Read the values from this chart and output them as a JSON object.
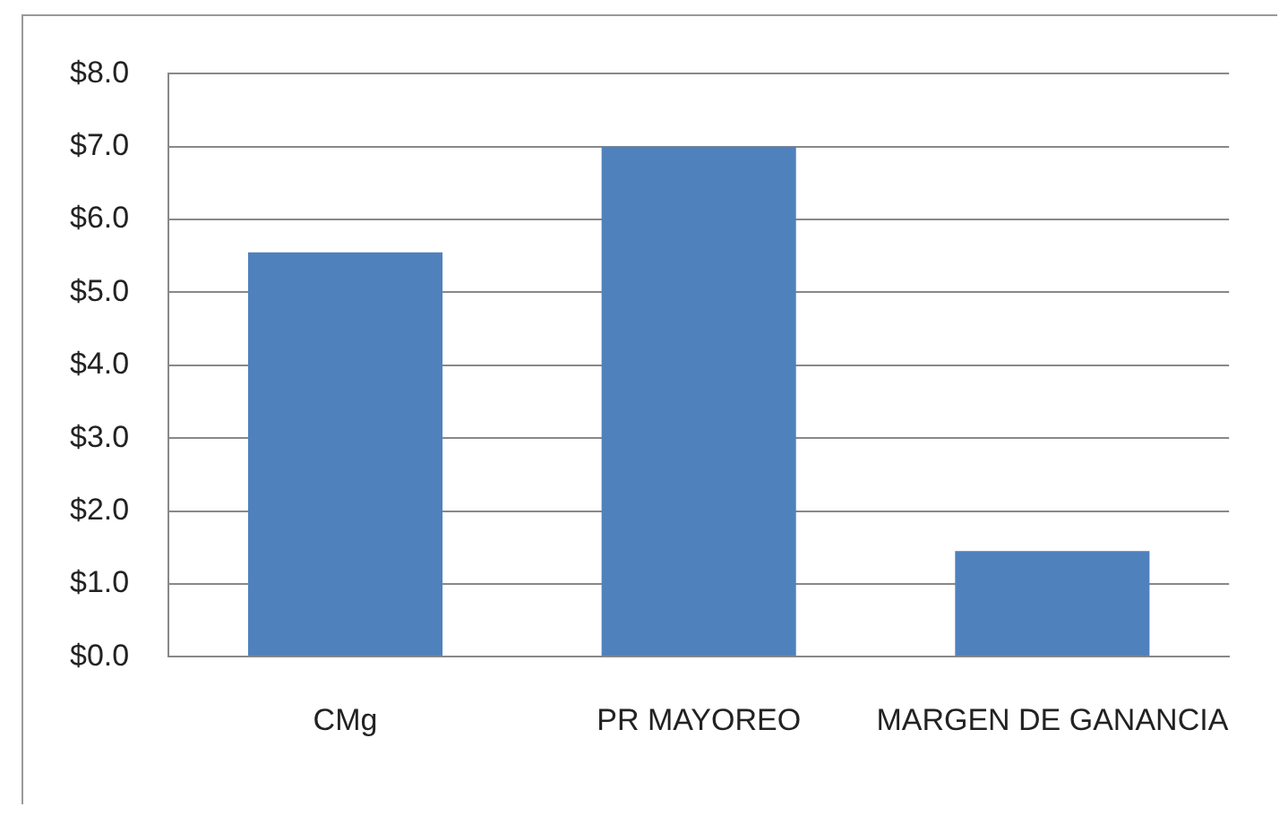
{
  "chart_data": {
    "type": "bar",
    "categories": [
      "CMg",
      "PR MAYOREO",
      "MARGEN DE GANANCIA"
    ],
    "values": [
      5.55,
      7.0,
      1.45
    ],
    "color": "#4f81bd",
    "ylim": [
      0,
      8
    ],
    "yticks": [
      {
        "value": 0,
        "label": "$0.0"
      },
      {
        "value": 1,
        "label": "$1.0"
      },
      {
        "value": 2,
        "label": "$2.0"
      },
      {
        "value": 3,
        "label": "$3.0"
      },
      {
        "value": 4,
        "label": "$4.0"
      },
      {
        "value": 5,
        "label": "$5.0"
      },
      {
        "value": 6,
        "label": "$6.0"
      },
      {
        "value": 7,
        "label": "$7.0"
      },
      {
        "value": 8,
        "label": "$8.0"
      }
    ],
    "grid": "y",
    "legend": false
  }
}
